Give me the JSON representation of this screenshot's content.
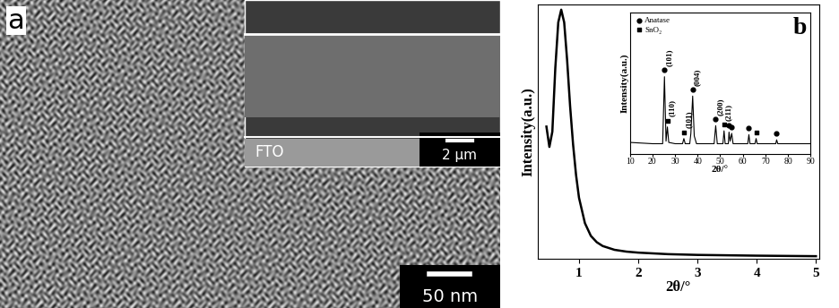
{
  "image_panel": {
    "label": "a",
    "scale_bar": "50 nm",
    "inset": {
      "label": "FTO",
      "scale_bar": "2 µm"
    }
  },
  "chart_data": [
    {
      "type": "line",
      "title": "b",
      "x_label": "2θ/°",
      "y_label": "Intensity(a.u.)",
      "x": [
        0.45,
        0.5,
        0.55,
        0.6,
        0.65,
        0.7,
        0.75,
        0.8,
        0.85,
        0.9,
        0.95,
        1.0,
        1.1,
        1.2,
        1.3,
        1.4,
        1.6,
        1.8,
        2.0,
        2.5,
        3.0,
        4.0,
        5.0
      ],
      "values": [
        0.52,
        0.44,
        0.5,
        0.75,
        0.93,
        0.98,
        0.93,
        0.78,
        0.6,
        0.45,
        0.33,
        0.24,
        0.14,
        0.09,
        0.065,
        0.05,
        0.035,
        0.028,
        0.024,
        0.018,
        0.015,
        0.012,
        0.01
      ],
      "color": "#000000",
      "xlim": [
        0.3,
        5.05
      ],
      "xticks": [
        1,
        2,
        3,
        4,
        5
      ],
      "ylim": [
        0,
        1.0
      ],
      "tick_labels": "x"
    },
    {
      "type": "line",
      "x_label": "2θ/°",
      "y_label": "Intensity(a.u.)",
      "xlim": [
        10,
        90
      ],
      "xticks": [
        10,
        20,
        30,
        40,
        50,
        60,
        70,
        80,
        90
      ],
      "ylim": [
        0,
        1.1
      ],
      "tick_labels": "x",
      "legend": "upper left",
      "series": [
        {
          "type": "line",
          "color": "#000000",
          "x": [
            10,
            15,
            20,
            24.5,
            25.3,
            26.0,
            26.6,
            27.2,
            30,
            33.3,
            33.9,
            34.5,
            36.5,
            37.0,
            37.8,
            38.5,
            39.5,
            47.3,
            48.0,
            48.7,
            51.2,
            51.7,
            52.2,
            53.6,
            53.9,
            54.4,
            55.1,
            55.7,
            62.2,
            62.7,
            63.2,
            65.4,
            65.9,
            66.4,
            70,
            74.6,
            75.0,
            75.5,
            80,
            85,
            90
          ],
          "values": [
            0.09,
            0.085,
            0.08,
            0.08,
            0.6,
            0.1,
            0.21,
            0.09,
            0.08,
            0.08,
            0.12,
            0.08,
            0.08,
            0.16,
            0.45,
            0.14,
            0.08,
            0.08,
            0.22,
            0.08,
            0.08,
            0.18,
            0.08,
            0.08,
            0.17,
            0.1,
            0.16,
            0.08,
            0.08,
            0.15,
            0.08,
            0.08,
            0.12,
            0.08,
            0.08,
            0.08,
            0.11,
            0.08,
            0.08,
            0.08,
            0.08
          ]
        },
        {
          "name": "Anatase",
          "type": "scatter",
          "marker": "circle",
          "color": "#000000",
          "x": [
            25.3,
            37.8,
            48.0,
            53.9,
            55.1,
            62.7,
            75.0
          ],
          "values": [
            0.65,
            0.5,
            0.27,
            0.22,
            0.21,
            0.2,
            0.16
          ]
        },
        {
          "name": "SnO₂",
          "type": "scatter",
          "marker": "square",
          "color": "#000000",
          "x": [
            26.6,
            33.9,
            51.7,
            65.9
          ],
          "values": [
            0.26,
            0.17,
            0.23,
            0.17
          ]
        }
      ],
      "annotations": [
        {
          "text": "(101)",
          "x": 25.3
        },
        {
          "text": "(110)",
          "x": 26.6
        },
        {
          "text": "(101)",
          "x": 33.9
        },
        {
          "text": "(004)",
          "x": 37.8
        },
        {
          "text": "(200)",
          "x": 48.0
        },
        {
          "text": "(211)",
          "x": 51.7
        }
      ]
    }
  ]
}
